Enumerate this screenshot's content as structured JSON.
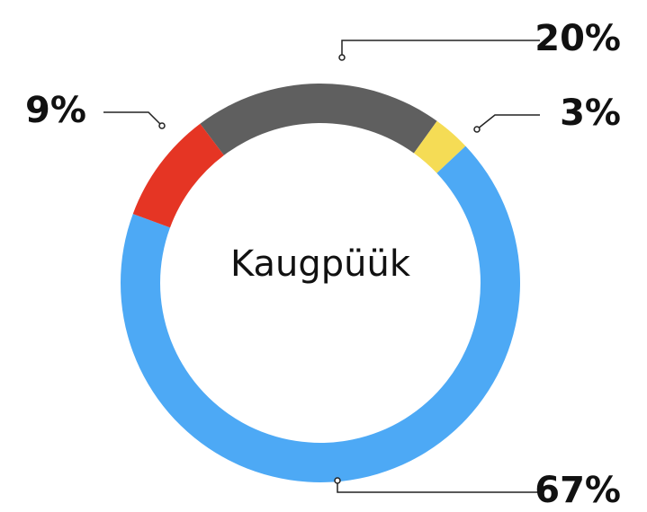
{
  "chart_data": {
    "type": "donut",
    "center_text": "Kaugpüük",
    "values": [
      20,
      3,
      67,
      9
    ],
    "value_labels": [
      "20%",
      "3%",
      "67%",
      "9%"
    ],
    "colors": [
      "#5f5f5f",
      "#f5dc55",
      "#4da9f5",
      "#e53524"
    ]
  }
}
